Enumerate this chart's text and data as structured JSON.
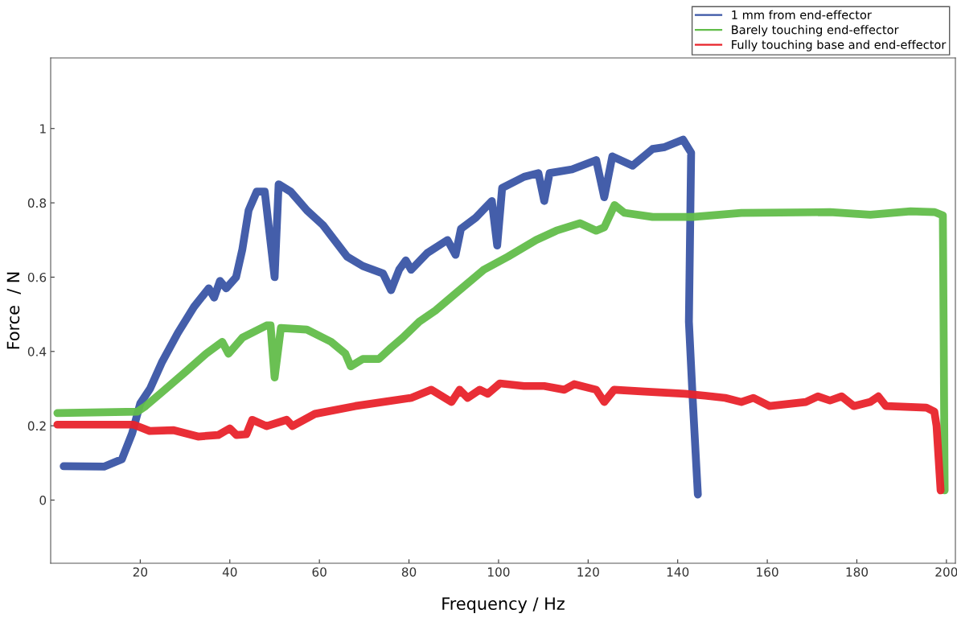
{
  "chart_data": {
    "type": "line",
    "xlabel": "Frequency / Hz",
    "ylabel": "Force  / N",
    "xlim": [
      0,
      202
    ],
    "ylim": [
      -0.17,
      1.19
    ],
    "xticks": [
      20,
      40,
      60,
      80,
      100,
      120,
      140,
      160,
      180,
      200
    ],
    "yticks": [
      0,
      0.2,
      0.4,
      0.6,
      0.8,
      1
    ],
    "grid": false,
    "legend": "top right",
    "marker": "none",
    "line_style": "solid",
    "series": [
      {
        "name": "1 mm from end-effector",
        "color": "#3a55a5",
        "x": [
          2.9,
          11.9,
          15.9,
          18.2,
          20,
          22.2,
          24.8,
          28.4,
          32,
          35.3,
          36.5,
          37.8,
          39.2,
          41.4,
          42.8,
          44.2,
          46,
          47.8,
          50,
          50.9,
          53.6,
          57.2,
          60.8,
          66.2,
          69.7,
          74.2,
          76,
          77.8,
          79.3,
          80.5,
          84.1,
          88.6,
          90.4,
          91.6,
          94.9,
          98.5,
          99.7,
          100.8,
          105.7,
          108.9,
          110.2,
          111.4,
          116.4,
          121.8,
          123.6,
          125.4,
          129.9,
          134.4,
          137.1,
          141.2,
          143,
          142.5,
          143.4,
          144.5
        ],
        "values": [
          0.091,
          0.09,
          0.11,
          0.18,
          0.26,
          0.3,
          0.37,
          0.45,
          0.52,
          0.57,
          0.545,
          0.59,
          0.57,
          0.6,
          0.675,
          0.78,
          0.83,
          0.83,
          0.6,
          0.85,
          0.83,
          0.78,
          0.74,
          0.655,
          0.63,
          0.61,
          0.565,
          0.62,
          0.645,
          0.62,
          0.665,
          0.7,
          0.66,
          0.73,
          0.76,
          0.805,
          0.685,
          0.84,
          0.87,
          0.88,
          0.805,
          0.88,
          0.89,
          0.915,
          0.815,
          0.925,
          0.9,
          0.945,
          0.95,
          0.97,
          0.935,
          0.48,
          0.26,
          0.015
        ]
      },
      {
        "name": "Barely touching end-effector",
        "color": "#62bd4a",
        "x": [
          1.5,
          19.4,
          21.2,
          24.8,
          30.2,
          34.7,
          38.3,
          39.7,
          42.8,
          48.2,
          49.1,
          50,
          51.4,
          57.2,
          62.6,
          65.8,
          67,
          69.7,
          73.3,
          76,
          78.6,
          82.3,
          85.9,
          90.4,
          96.7,
          102.1,
          108.4,
          112.9,
          118.2,
          121.8,
          123.6,
          125.9,
          128.1,
          134.4,
          143.4,
          154.2,
          174,
          183,
          192,
          197.4,
          199.2,
          199.4,
          199.6
        ],
        "values": [
          0.234,
          0.238,
          0.253,
          0.29,
          0.346,
          0.394,
          0.426,
          0.394,
          0.437,
          0.47,
          0.47,
          0.33,
          0.463,
          0.459,
          0.426,
          0.394,
          0.36,
          0.38,
          0.38,
          0.41,
          0.437,
          0.48,
          0.51,
          0.556,
          0.62,
          0.655,
          0.7,
          0.725,
          0.745,
          0.725,
          0.734,
          0.794,
          0.773,
          0.762,
          0.762,
          0.773,
          0.775,
          0.768,
          0.777,
          0.775,
          0.766,
          0.415,
          0.026
        ]
      },
      {
        "name": "Fully touching base and end-effector",
        "color": "#e8232b",
        "x": [
          1.5,
          18.5,
          22.1,
          27.5,
          32.9,
          37.4,
          40,
          41.5,
          43.7,
          45,
          48.2,
          52.7,
          54,
          59,
          68,
          80.5,
          85,
          89.5,
          91.3,
          93.1,
          95.8,
          97.6,
          100.3,
          105.7,
          110.2,
          114.7,
          116.9,
          121.8,
          123.6,
          125.8,
          132.6,
          141.6,
          146.1,
          150.6,
          154.2,
          156.9,
          160.5,
          168.6,
          171.3,
          174,
          176.6,
          179.3,
          183,
          184.8,
          186.5,
          195.5,
          197.3,
          197.8,
          198.7
        ],
        "values": [
          0.203,
          0.203,
          0.186,
          0.188,
          0.171,
          0.175,
          0.193,
          0.175,
          0.177,
          0.216,
          0.199,
          0.216,
          0.199,
          0.232,
          0.253,
          0.275,
          0.297,
          0.264,
          0.297,
          0.275,
          0.297,
          0.286,
          0.314,
          0.307,
          0.307,
          0.297,
          0.312,
          0.297,
          0.264,
          0.297,
          0.292,
          0.286,
          0.281,
          0.275,
          0.264,
          0.275,
          0.253,
          0.264,
          0.279,
          0.268,
          0.279,
          0.253,
          0.264,
          0.279,
          0.253,
          0.249,
          0.238,
          0.199,
          0.026
        ]
      }
    ]
  }
}
